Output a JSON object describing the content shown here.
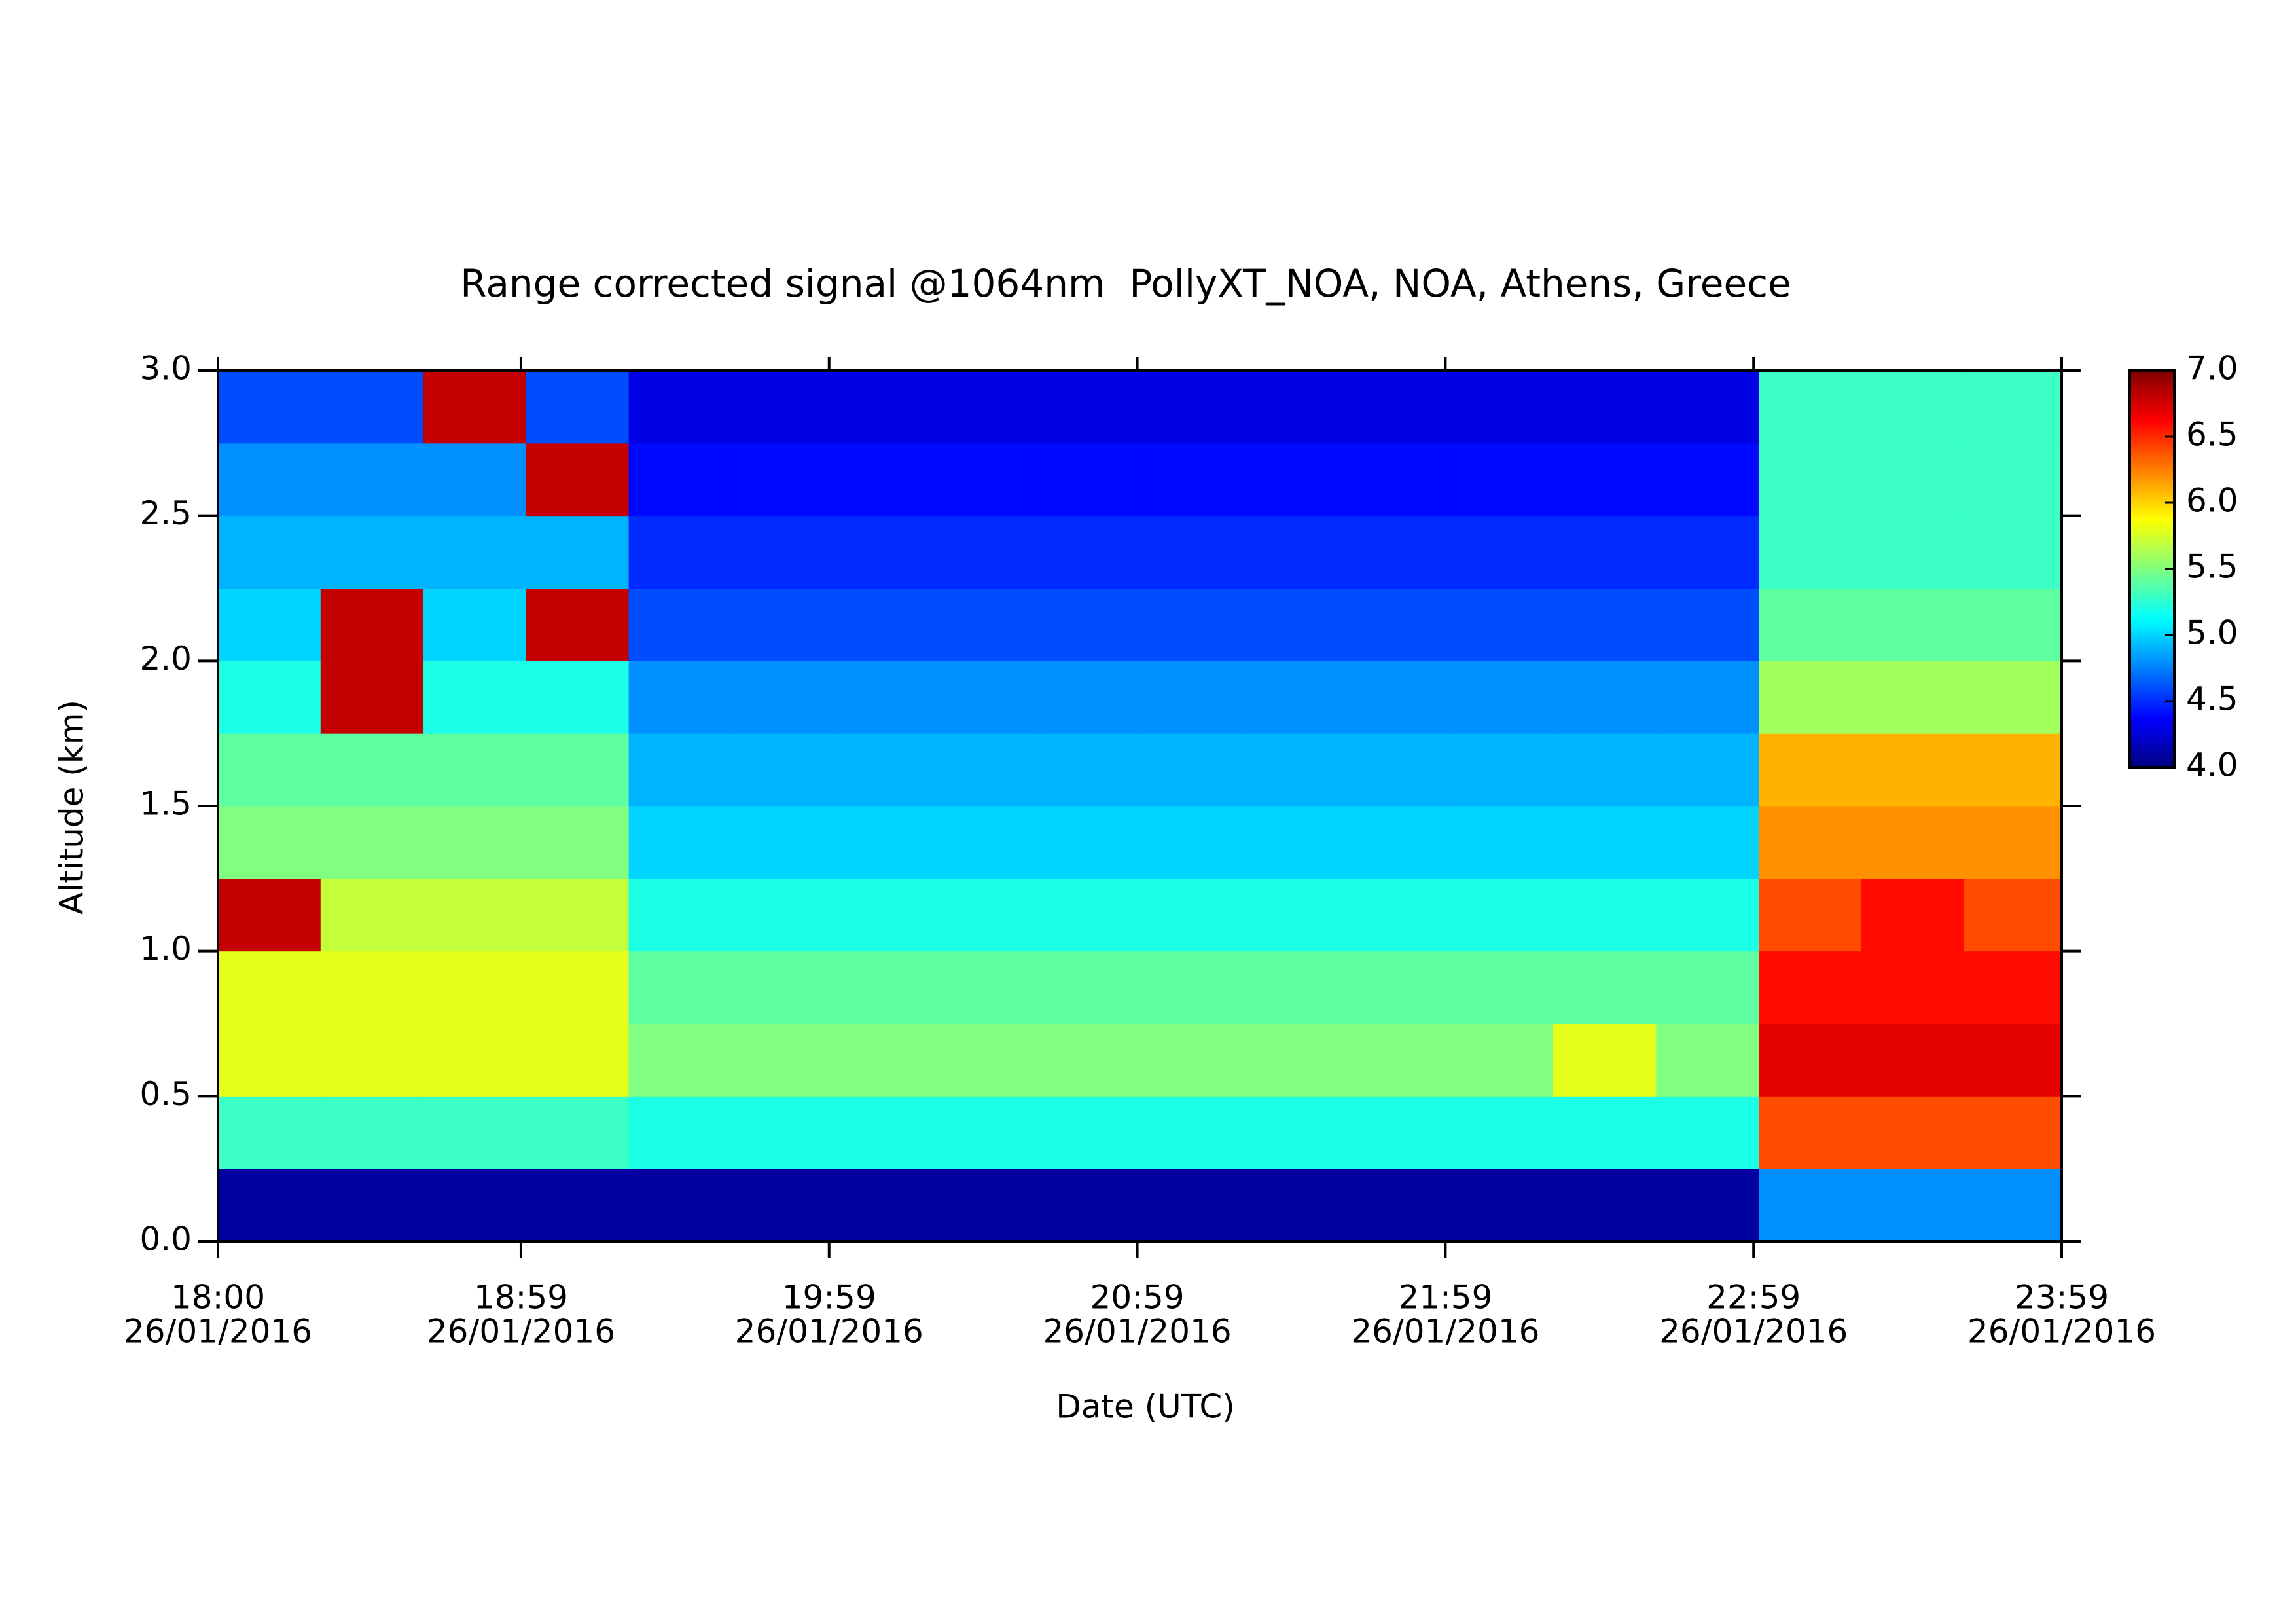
{
  "chart_data": {
    "type": "heatmap",
    "title": "Range corrected signal @1064nm  PollyXT_NOA, NOA, Athens, Greece",
    "xlabel": "Date (UTC)",
    "ylabel": "Altitude (km)",
    "xlim": [
      18,
      23.9833
    ],
    "ylim": [
      0,
      3
    ],
    "xticks": [
      {
        "value": 18,
        "label": [
          "18:00",
          "26/01/2016"
        ]
      },
      {
        "value": 18.9833,
        "label": [
          "18:59",
          "26/01/2016"
        ]
      },
      {
        "value": 19.9833,
        "label": [
          "19:59",
          "26/01/2016"
        ]
      },
      {
        "value": 20.9833,
        "label": [
          "20:59",
          "26/01/2016"
        ]
      },
      {
        "value": 21.9833,
        "label": [
          "21:59",
          "26/01/2016"
        ]
      },
      {
        "value": 22.9833,
        "label": [
          "22:59",
          "26/01/2016"
        ]
      },
      {
        "value": 23.9833,
        "label": [
          "23:59",
          "26/01/2016"
        ]
      }
    ],
    "yticks": [
      {
        "value": 0,
        "label": "0.0"
      },
      {
        "value": 0.5,
        "label": "0.5"
      },
      {
        "value": 1,
        "label": "1.0"
      },
      {
        "value": 1.5,
        "label": "1.5"
      },
      {
        "value": 2,
        "label": "2.0"
      },
      {
        "value": 2.5,
        "label": "2.5"
      },
      {
        "value": 3,
        "label": "3.0"
      }
    ],
    "zlim": [
      4,
      7
    ],
    "zticks": [
      {
        "value": 4,
        "label": "4.0"
      },
      {
        "value": 4.5,
        "label": "4.5"
      },
      {
        "value": 5,
        "label": "5.0"
      },
      {
        "value": 5.5,
        "label": "5.5"
      },
      {
        "value": 6,
        "label": "6.0"
      },
      {
        "value": 6.5,
        "label": "6.5"
      },
      {
        "value": 7,
        "label": "7.0"
      }
    ],
    "colormap": "jet",
    "x": [
      18,
      18.333,
      18.667,
      19,
      19.333,
      19.667,
      20,
      20.333,
      20.667,
      21,
      21.333,
      21.667,
      22,
      22.333,
      22.667,
      23,
      23.333,
      23.667
    ],
    "y": [
      0,
      0.25,
      0.5,
      0.75,
      1,
      1.25,
      1.5,
      1.75,
      2,
      2.25,
      2.5,
      2.75
    ],
    "z": [
      [
        4.1,
        4.1,
        4.1,
        4.1,
        4.1,
        4.1,
        4.1,
        4.1,
        4.1,
        4.1,
        4.1,
        4.1,
        4.1,
        4.1,
        4.1,
        4.8,
        4.8,
        4.8
      ],
      [
        5.3,
        5.3,
        5.3,
        5.3,
        5.2,
        5.2,
        5.2,
        5.2,
        5.2,
        5.2,
        5.2,
        5.2,
        5.2,
        5.2,
        5.2,
        6.4,
        6.4,
        6.4
      ],
      [
        5.8,
        5.8,
        5.8,
        5.8,
        5.5,
        5.5,
        5.5,
        5.5,
        5.5,
        5.5,
        5.5,
        5.5,
        5.5,
        5.8,
        5.5,
        6.7,
        6.7,
        6.7
      ],
      [
        5.8,
        5.8,
        5.8,
        5.8,
        5.4,
        5.4,
        5.4,
        5.4,
        5.4,
        5.4,
        5.4,
        5.4,
        5.4,
        5.4,
        5.4,
        6.6,
        6.6,
        6.6
      ],
      [
        6.8,
        5.7,
        5.7,
        5.7,
        5.2,
        5.2,
        5.2,
        5.2,
        5.2,
        5.2,
        5.2,
        5.2,
        5.2,
        5.2,
        5.2,
        6.4,
        6.6,
        6.4
      ],
      [
        5.5,
        5.5,
        5.5,
        5.5,
        5.0,
        5.0,
        5.0,
        5.0,
        5.0,
        5.0,
        5.0,
        5.0,
        5.0,
        5.0,
        5.0,
        6.2,
        6.2,
        6.2
      ],
      [
        5.4,
        5.4,
        5.4,
        5.4,
        4.9,
        4.9,
        4.9,
        4.9,
        4.9,
        4.9,
        4.9,
        4.9,
        4.9,
        4.9,
        4.9,
        6.1,
        6.1,
        6.1
      ],
      [
        5.2,
        6.8,
        5.2,
        5.2,
        4.8,
        4.8,
        4.8,
        4.8,
        4.8,
        4.8,
        4.8,
        4.8,
        4.8,
        4.8,
        4.8,
        5.6,
        5.6,
        5.6
      ],
      [
        5.0,
        6.8,
        5.0,
        6.8,
        4.6,
        4.6,
        4.6,
        4.6,
        4.6,
        4.6,
        4.6,
        4.6,
        4.6,
        4.6,
        4.6,
        5.4,
        5.4,
        5.4
      ],
      [
        4.9,
        4.9,
        4.9,
        4.9,
        4.5,
        4.5,
        4.5,
        4.5,
        4.5,
        4.5,
        4.5,
        4.5,
        4.5,
        4.5,
        4.5,
        5.3,
        5.3,
        5.3
      ],
      [
        4.8,
        4.8,
        4.8,
        6.8,
        4.4,
        4.4,
        4.4,
        4.4,
        4.4,
        4.4,
        4.4,
        4.4,
        4.4,
        4.4,
        4.4,
        5.3,
        5.3,
        5.3
      ],
      [
        4.6,
        4.6,
        6.8,
        4.6,
        4.3,
        4.3,
        4.3,
        4.3,
        4.3,
        4.3,
        4.3,
        4.3,
        4.3,
        4.3,
        4.3,
        5.3,
        5.3,
        5.3
      ]
    ]
  }
}
